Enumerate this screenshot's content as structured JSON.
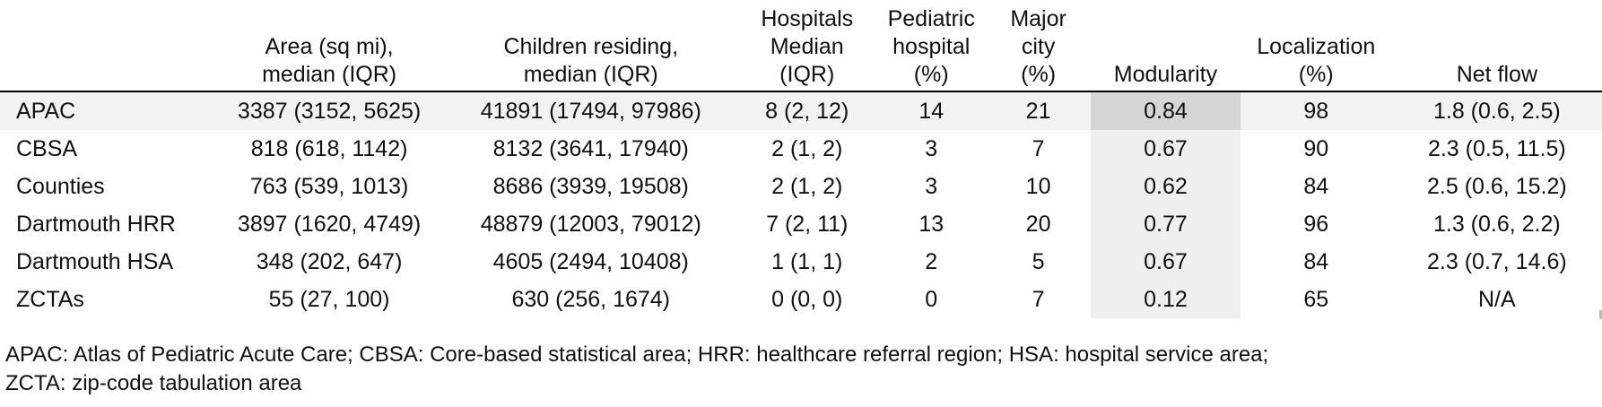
{
  "table": {
    "headers": [
      {
        "lines": [
          ""
        ]
      },
      {
        "lines": [
          "Area (sq mi),",
          "median (IQR)"
        ]
      },
      {
        "lines": [
          "Children residing,",
          "median (IQR)"
        ]
      },
      {
        "lines": [
          "Hospitals",
          "Median",
          "(IQR)"
        ]
      },
      {
        "lines": [
          "Pediatric",
          "hospital",
          "(%)"
        ]
      },
      {
        "lines": [
          "Major",
          "city",
          "(%)"
        ]
      },
      {
        "lines": [
          "Modularity"
        ]
      },
      {
        "lines": [
          "Localization",
          "(%)"
        ]
      },
      {
        "lines": [
          "Net flow"
        ]
      }
    ],
    "rows": [
      [
        "APAC",
        "3387 (3152, 5625)",
        "41891 (17494, 97986)",
        "8 (2, 12)",
        "14",
        "21",
        "0.84",
        "98",
        "1.8 (0.6, 2.5)"
      ],
      [
        "CBSA",
        "818 (618, 1142)",
        "8132 (3641, 17940)",
        "2 (1, 2)",
        "3",
        "7",
        "0.67",
        "90",
        "2.3 (0.5, 11.5)"
      ],
      [
        "Counties",
        "763 (539, 1013)",
        "8686 (3939, 19508)",
        "2 (1, 2)",
        "3",
        "10",
        "0.62",
        "84",
        "2.5 (0.6, 15.2)"
      ],
      [
        "Dartmouth HRR",
        "3897 (1620, 4749)",
        "48879 (12003, 79012)",
        "7 (2, 11)",
        "13",
        "20",
        "0.77",
        "96",
        "1.3 (0.6, 2.2)"
      ],
      [
        "Dartmouth HSA",
        "348 (202, 647)",
        "4605 (2494, 10408)",
        "1 (1, 1)",
        "2",
        "5",
        "0.67",
        "84",
        "2.3 (0.7, 14.6)"
      ],
      [
        "ZCTAs",
        "55 (27, 100)",
        "630 (256, 1674)",
        "0 (0, 0)",
        "0",
        "7",
        "0.12",
        "65",
        "N/A"
      ]
    ]
  },
  "footnote": {
    "line1": "APAC: Atlas of Pediatric Acute Care; CBSA: Core-based statistical area; HRR: healthcare referral region; HSA: hospital service area;",
    "line2": "ZCTA: zip-code tabulation area"
  },
  "colors": {
    "highlight_row": "#f2f2f2",
    "modularity_column": "#efefef",
    "modularity_highlight_cell": "#d6d6d6"
  }
}
